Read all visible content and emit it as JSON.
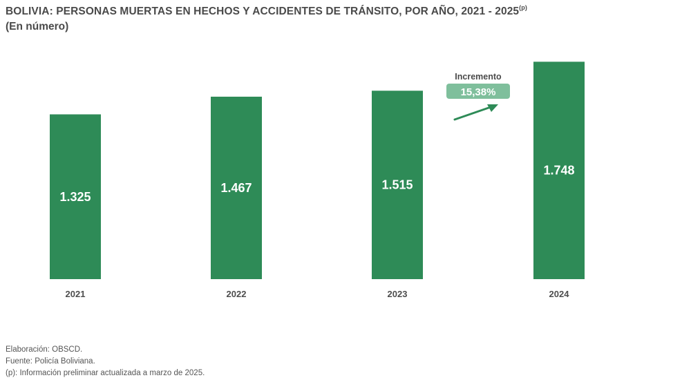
{
  "header": {
    "title": "BOLIVIA: PERSONAS MUERTAS EN HECHOS Y ACCIDENTES DE TRÁNSITO, POR AÑO, 2021 - 2025",
    "title_superscript": "(p)",
    "subtitle": "(En número)"
  },
  "chart_data": {
    "type": "bar",
    "categories": [
      "2021",
      "2022",
      "2023",
      "2024"
    ],
    "values": [
      1325,
      1467,
      1515,
      1748
    ],
    "value_labels": [
      "1.325",
      "1.467",
      "1.515",
      "1.748"
    ],
    "bar_color": "#2e8b57",
    "grid": false,
    "legend": "none",
    "annotation": {
      "label": "Incremento",
      "value": "15,38%",
      "badge_color": "#7fbf9c",
      "arrow_color": "#2e8b57",
      "between": [
        "2023",
        "2024"
      ]
    }
  },
  "footer": {
    "lines": [
      "Elaboración: OBSCD.",
      "Fuente: Policía Boliviana.",
      "(p): Información preliminar actualizada a marzo de 2025."
    ]
  }
}
